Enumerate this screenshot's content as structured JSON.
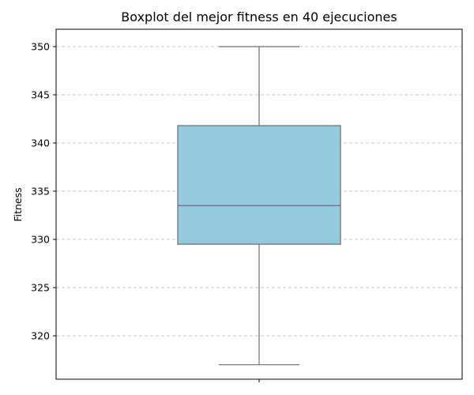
{
  "chart_data": {
    "type": "boxplot",
    "title": "Boxplot del mejor fitness en 40 ejecuciones",
    "xlabel": "",
    "ylabel": "Fitness",
    "ylim": [
      315.5,
      351.8
    ],
    "yticks": [
      320,
      325,
      330,
      335,
      340,
      345,
      350
    ],
    "grid": true,
    "box": {
      "whisker_low": 317.0,
      "q1": 329.5,
      "median": 333.5,
      "q3": 341.8,
      "whisker_high": 350.0
    },
    "box_color": "#94c9df",
    "line_color": "#6b6b6b"
  }
}
